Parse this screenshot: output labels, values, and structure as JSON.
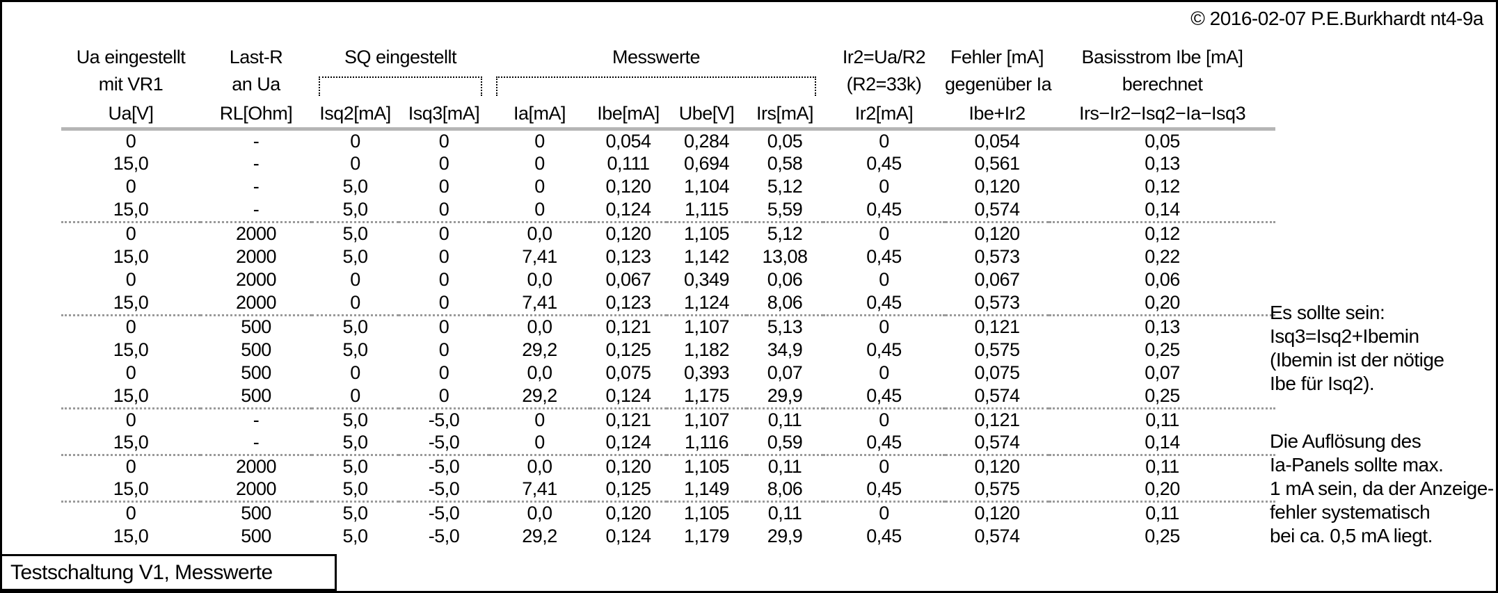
{
  "copyright": "© 2016-02-07 P.E.Burkhardt nt4-9a",
  "caption": "Testschaltung V1, Messwerte",
  "colors": {
    "text": "#000000",
    "header_rule": "#b5b5b5",
    "dotted_separator": "#9a9a9a"
  },
  "table": {
    "header": {
      "ua_line1": "Ua eingestellt",
      "ua_line2": "mit VR1",
      "lastr_line1": "Last-R",
      "lastr_line2": "an Ua",
      "sq_group": "SQ eingestellt",
      "messwerte_group": "Messwerte",
      "ir2_line1": "Ir2=Ua/R2",
      "ir2_line2": "(R2=33k)",
      "fehler_line1": "Fehler [mA]",
      "fehler_line2": "gegenüber Ia",
      "basis_line1": "Basisstrom Ibe [mA]",
      "basis_line2": "berechnet"
    },
    "units": [
      "Ua[V]",
      "RL[Ohm]",
      "Isq2[mA]",
      "Isq3[mA]",
      "Ia[mA]",
      "Ibe[mA]",
      "Ube[V]",
      "Irs[mA]",
      "Ir2[mA]",
      "Ibe+Ir2",
      "Irs−Ir2−Isq2−Ia−Isq3"
    ],
    "separator_rows": [
      4,
      8,
      12,
      14,
      16
    ],
    "rows": [
      [
        "0",
        "-",
        "0",
        "0",
        "0",
        "0,054",
        "0,284",
        "0,05",
        "0",
        "0,054",
        "0,05"
      ],
      [
        "15,0",
        "-",
        "0",
        "0",
        "0",
        "0,111",
        "0,694",
        "0,58",
        "0,45",
        "0,561",
        "0,13"
      ],
      [
        "0",
        "-",
        "5,0",
        "0",
        "0",
        "0,120",
        "1,104",
        "5,12",
        "0",
        "0,120",
        "0,12"
      ],
      [
        "15,0",
        "-",
        "5,0",
        "0",
        "0",
        "0,124",
        "1,115",
        "5,59",
        "0,45",
        "0,574",
        "0,14"
      ],
      [
        "0",
        "2000",
        "5,0",
        "0",
        "0,0",
        "0,120",
        "1,105",
        "5,12",
        "0",
        "0,120",
        "0,12"
      ],
      [
        "15,0",
        "2000",
        "5,0",
        "0",
        "7,41",
        "0,123",
        "1,142",
        "13,08",
        "0,45",
        "0,573",
        "0,22"
      ],
      [
        "0",
        "2000",
        "0",
        "0",
        "0,0",
        "0,067",
        "0,349",
        "0,06",
        "0",
        "0,067",
        "0,06"
      ],
      [
        "15,0",
        "2000",
        "0",
        "0",
        "7,41",
        "0,123",
        "1,124",
        "8,06",
        "0,45",
        "0,573",
        "0,20"
      ],
      [
        "0",
        "500",
        "5,0",
        "0",
        "0,0",
        "0,121",
        "1,107",
        "5,13",
        "0",
        "0,121",
        "0,13"
      ],
      [
        "15,0",
        "500",
        "5,0",
        "0",
        "29,2",
        "0,125",
        "1,182",
        "34,9",
        "0,45",
        "0,575",
        "0,25"
      ],
      [
        "0",
        "500",
        "0",
        "0",
        "0,0",
        "0,075",
        "0,393",
        "0,07",
        "0",
        "0,075",
        "0,07"
      ],
      [
        "15,0",
        "500",
        "0",
        "0",
        "29,2",
        "0,124",
        "1,175",
        "29,9",
        "0,45",
        "0,574",
        "0,25"
      ],
      [
        "0",
        "-",
        "5,0",
        "-5,0",
        "0",
        "0,121",
        "1,107",
        "0,11",
        "0",
        "0,121",
        "0,11"
      ],
      [
        "15,0",
        "-",
        "5,0",
        "-5,0",
        "0",
        "0,124",
        "1,116",
        "0,59",
        "0,45",
        "0,574",
        "0,14"
      ],
      [
        "0",
        "2000",
        "5,0",
        "-5,0",
        "0,0",
        "0,120",
        "1,105",
        "0,11",
        "0",
        "0,120",
        "0,11"
      ],
      [
        "15,0",
        "2000",
        "5,0",
        "-5,0",
        "7,41",
        "0,125",
        "1,149",
        "8,06",
        "0,45",
        "0,575",
        "0,20"
      ],
      [
        "0",
        "500",
        "5,0",
        "-5,0",
        "0,0",
        "0,120",
        "1,105",
        "0,11",
        "0",
        "0,120",
        "0,11"
      ],
      [
        "15,0",
        "500",
        "5,0",
        "-5,0",
        "29,2",
        "0,124",
        "1,179",
        "29,9",
        "0,45",
        "0,574",
        "0,25"
      ]
    ]
  },
  "notes": {
    "block1": "Es sollte sein:\nIsq3=Isq2+Ibemin\n(Ibemin ist der nötige\nIbe für Isq2).",
    "block2": "Die Auflösung des\nIa-Panels sollte max.\n1 mA sein, da der Anzeige-\nfehler systematisch\nbei ca. 0,5 mA liegt."
  }
}
